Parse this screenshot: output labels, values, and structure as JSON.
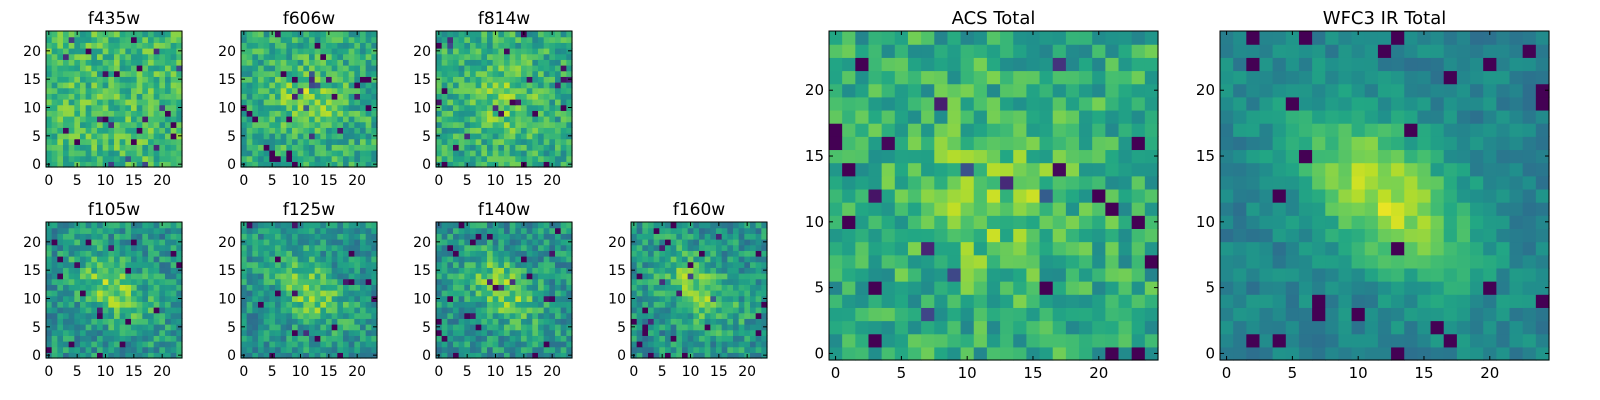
{
  "chart_data": [
    {
      "type": "heatmap",
      "title": "f435w",
      "pixels": 24,
      "x_ticks": [
        0,
        5,
        10,
        15,
        20
      ],
      "y_ticks": [
        0,
        5,
        10,
        15,
        20
      ],
      "colormap": "viridis",
      "structure": "noise",
      "seed": 11
    },
    {
      "type": "heatmap",
      "title": "f606w",
      "pixels": 24,
      "x_ticks": [
        0,
        5,
        10,
        15,
        20
      ],
      "y_ticks": [
        0,
        5,
        10,
        15,
        20
      ],
      "colormap": "viridis",
      "structure": "faint-central-blob",
      "seed": 23
    },
    {
      "type": "heatmap",
      "title": "f814w",
      "pixels": 24,
      "x_ticks": [
        0,
        5,
        10,
        15,
        20
      ],
      "y_ticks": [
        0,
        5,
        10,
        15,
        20
      ],
      "colormap": "viridis",
      "structure": "faint-central-blob",
      "seed": 37
    },
    {
      "type": "heatmap",
      "title": "f105w",
      "pixels": 24,
      "x_ticks": [
        0,
        5,
        10,
        15,
        20
      ],
      "y_ticks": [
        0,
        5,
        10,
        15,
        20
      ],
      "colormap": "viridis",
      "structure": "diagonal-blob",
      "seed": 41
    },
    {
      "type": "heatmap",
      "title": "f125w",
      "pixels": 24,
      "x_ticks": [
        0,
        5,
        10,
        15,
        20
      ],
      "y_ticks": [
        0,
        5,
        10,
        15,
        20
      ],
      "colormap": "viridis",
      "structure": "diagonal-blob",
      "seed": 53
    },
    {
      "type": "heatmap",
      "title": "f140w",
      "pixels": 24,
      "x_ticks": [
        0,
        5,
        10,
        15,
        20
      ],
      "y_ticks": [
        0,
        5,
        10,
        15,
        20
      ],
      "colormap": "viridis",
      "structure": "diagonal-blob",
      "seed": 67
    },
    {
      "type": "heatmap",
      "title": "f160w",
      "pixels": 24,
      "x_ticks": [
        0,
        5,
        10,
        15,
        20
      ],
      "y_ticks": [
        0,
        5,
        10,
        15,
        20
      ],
      "colormap": "viridis",
      "structure": "diagonal-blob",
      "seed": 79
    },
    {
      "type": "heatmap",
      "title": "ACS Total",
      "pixels": 25,
      "x_ticks": [
        0,
        5,
        10,
        15,
        20
      ],
      "y_ticks": [
        0,
        5,
        10,
        15,
        20
      ],
      "colormap": "viridis",
      "structure": "faint-central-blob",
      "seed": 83
    },
    {
      "type": "heatmap",
      "title": "WFC3 IR Total",
      "pixels": 25,
      "x_ticks": [
        0,
        5,
        10,
        15,
        20
      ],
      "y_ticks": [
        0,
        5,
        10,
        15,
        20
      ],
      "colormap": "viridis",
      "structure": "strong-diagonal-blob",
      "seed": 97
    }
  ]
}
